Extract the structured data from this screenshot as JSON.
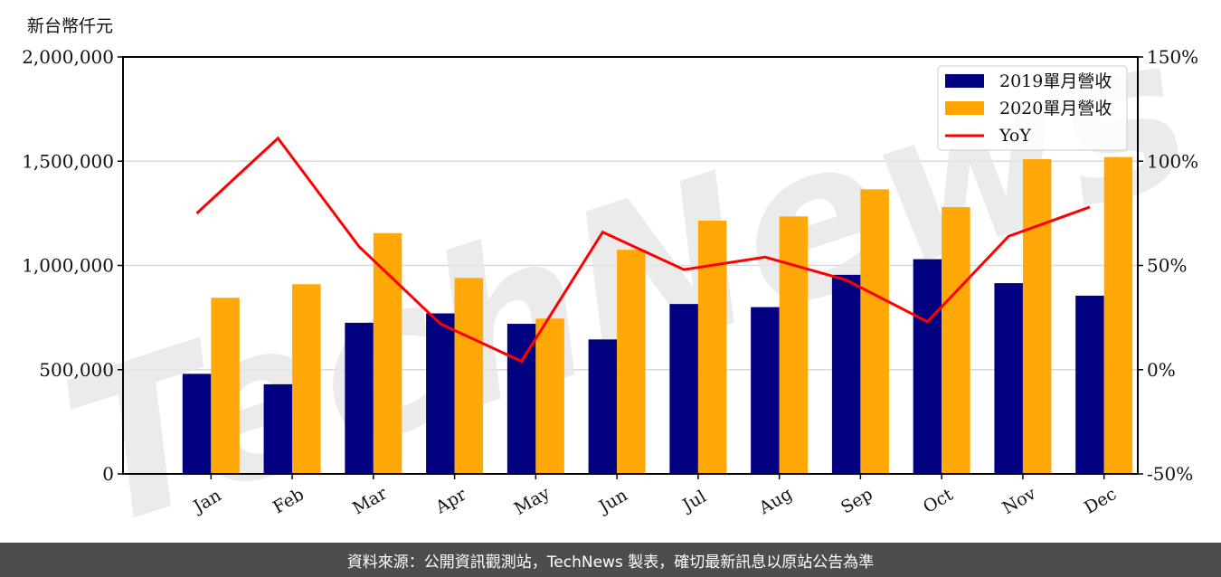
{
  "chart_data": {
    "type": "bar",
    "title": "",
    "ylabel": "新台幣仟元",
    "xlabel": "",
    "categories": [
      "Jan",
      "Feb",
      "Mar",
      "Apr",
      "May",
      "Jun",
      "Jul",
      "Aug",
      "Sep",
      "Oct",
      "Nov",
      "Dec"
    ],
    "series": [
      {
        "name": "2019單月營收",
        "type": "bar",
        "color": "#000080",
        "axis": "left",
        "values": [
          480000,
          430000,
          725000,
          770000,
          720000,
          645000,
          815000,
          800000,
          955000,
          1030000,
          915000,
          855000
        ]
      },
      {
        "name": "2020單月營收",
        "type": "bar",
        "color": "#FFA500",
        "axis": "left",
        "values": [
          845000,
          910000,
          1155000,
          940000,
          745000,
          1075000,
          1215000,
          1235000,
          1365000,
          1280000,
          1510000,
          1520000
        ]
      },
      {
        "name": "YoY",
        "type": "line",
        "color": "#FF0000",
        "axis": "right",
        "values": [
          75,
          111,
          59,
          22,
          4,
          66,
          48,
          54,
          43,
          23,
          64,
          78
        ]
      }
    ],
    "ylim": [
      0,
      2000000
    ],
    "y_ticks": [
      "0",
      "500,000",
      "1,000,000",
      "1,500,000",
      "2,000,000"
    ],
    "y2lim": [
      -50,
      150
    ],
    "y2_ticks": [
      "-50%",
      "0%",
      "50%",
      "100%",
      "150%"
    ],
    "grid": true,
    "legend_position": "upper right",
    "watermark": "TechNews"
  },
  "unit_label": "新台幣仟元",
  "legend": {
    "items": [
      "2019單月營收",
      "2020單月營收",
      "YoY"
    ]
  },
  "footer": {
    "text": "資料來源：公開資訊觀測站，TechNews 製表，確切最新訊息以原站公告為準"
  }
}
